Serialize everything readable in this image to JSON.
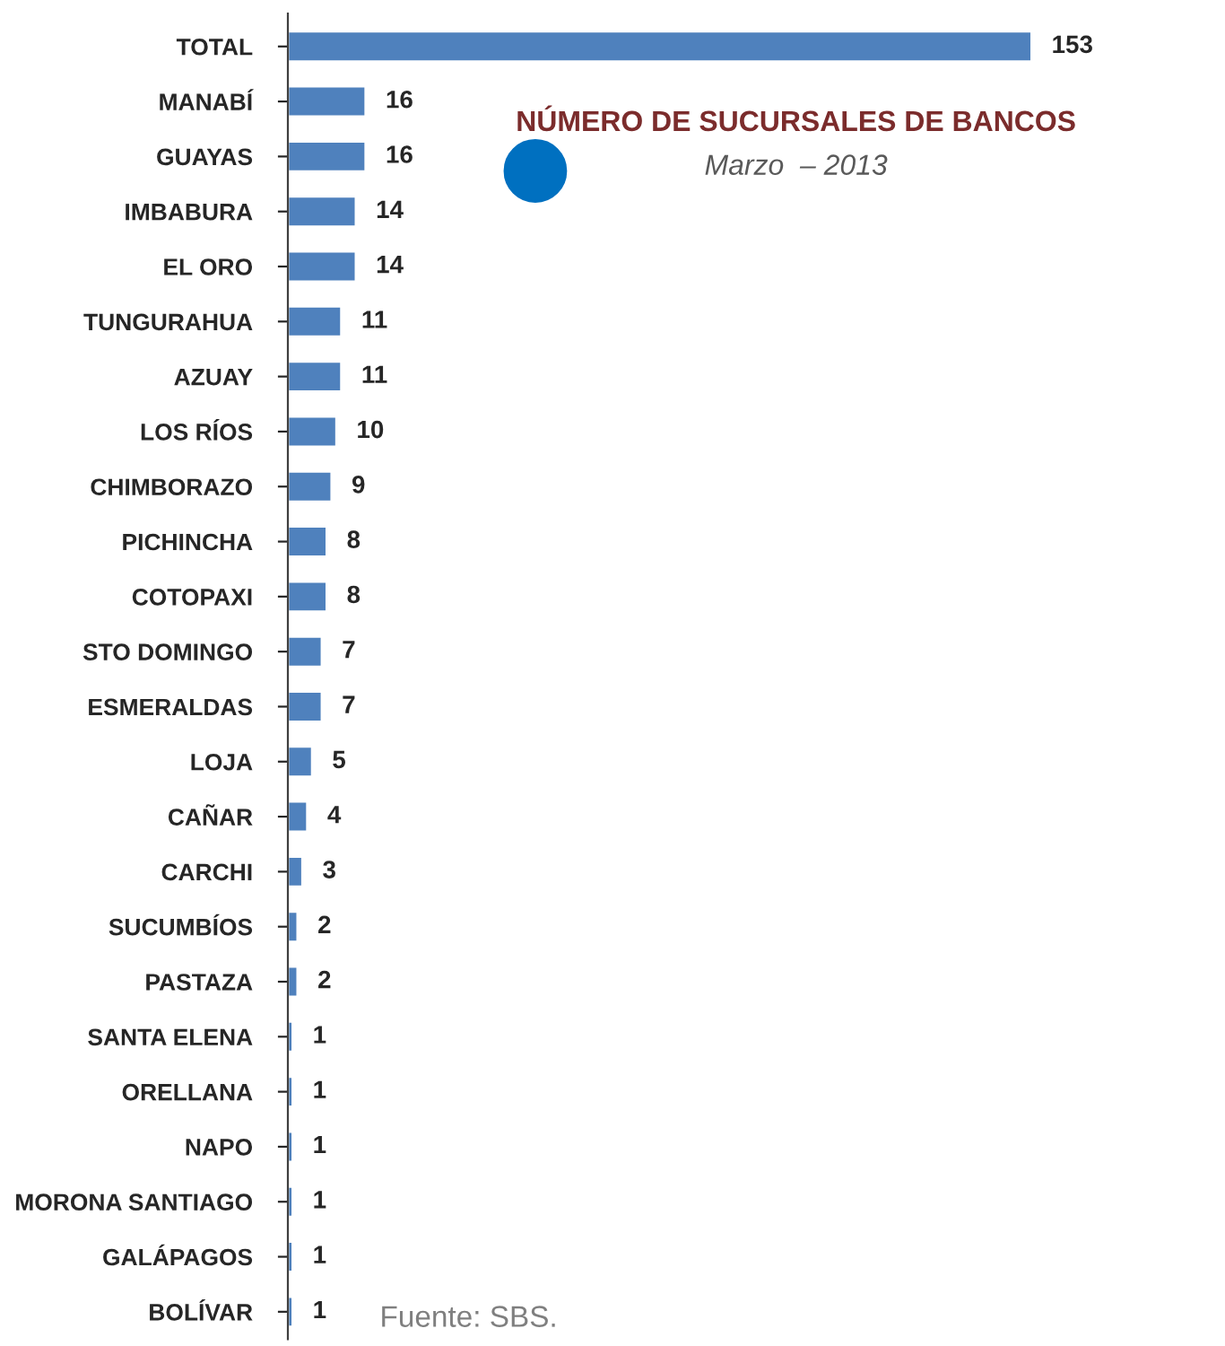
{
  "chart_data": {
    "type": "bar",
    "orientation": "horizontal",
    "title": "NÚMERO DE SUCURSALES DE BANCOS",
    "subtitle": "Marzo  – 2013",
    "categories": [
      "TOTAL",
      "MANABÍ",
      "GUAYAS",
      "IMBABURA",
      "EL ORO",
      "TUNGURAHUA",
      "AZUAY",
      "LOS RÍOS",
      "CHIMBORAZO",
      "PICHINCHA",
      "COTOPAXI",
      "STO DOMINGO",
      "ESMERALDAS",
      "LOJA",
      "CAÑAR",
      "CARCHI",
      "SUCUMBÍOS",
      "PASTAZA",
      "SANTA ELENA",
      "ORELLANA",
      "NAPO",
      "MORONA SANTIAGO",
      "GALÁPAGOS",
      "BOLÍVAR"
    ],
    "values": [
      153,
      16,
      16,
      14,
      14,
      11,
      11,
      10,
      9,
      8,
      8,
      7,
      7,
      5,
      4,
      3,
      2,
      2,
      1,
      1,
      1,
      1,
      1,
      1
    ],
    "color": "#4f81bd",
    "data_labels": true,
    "grid": false,
    "legend": false,
    "annotations": [
      "Fuente: SBS."
    ]
  }
}
